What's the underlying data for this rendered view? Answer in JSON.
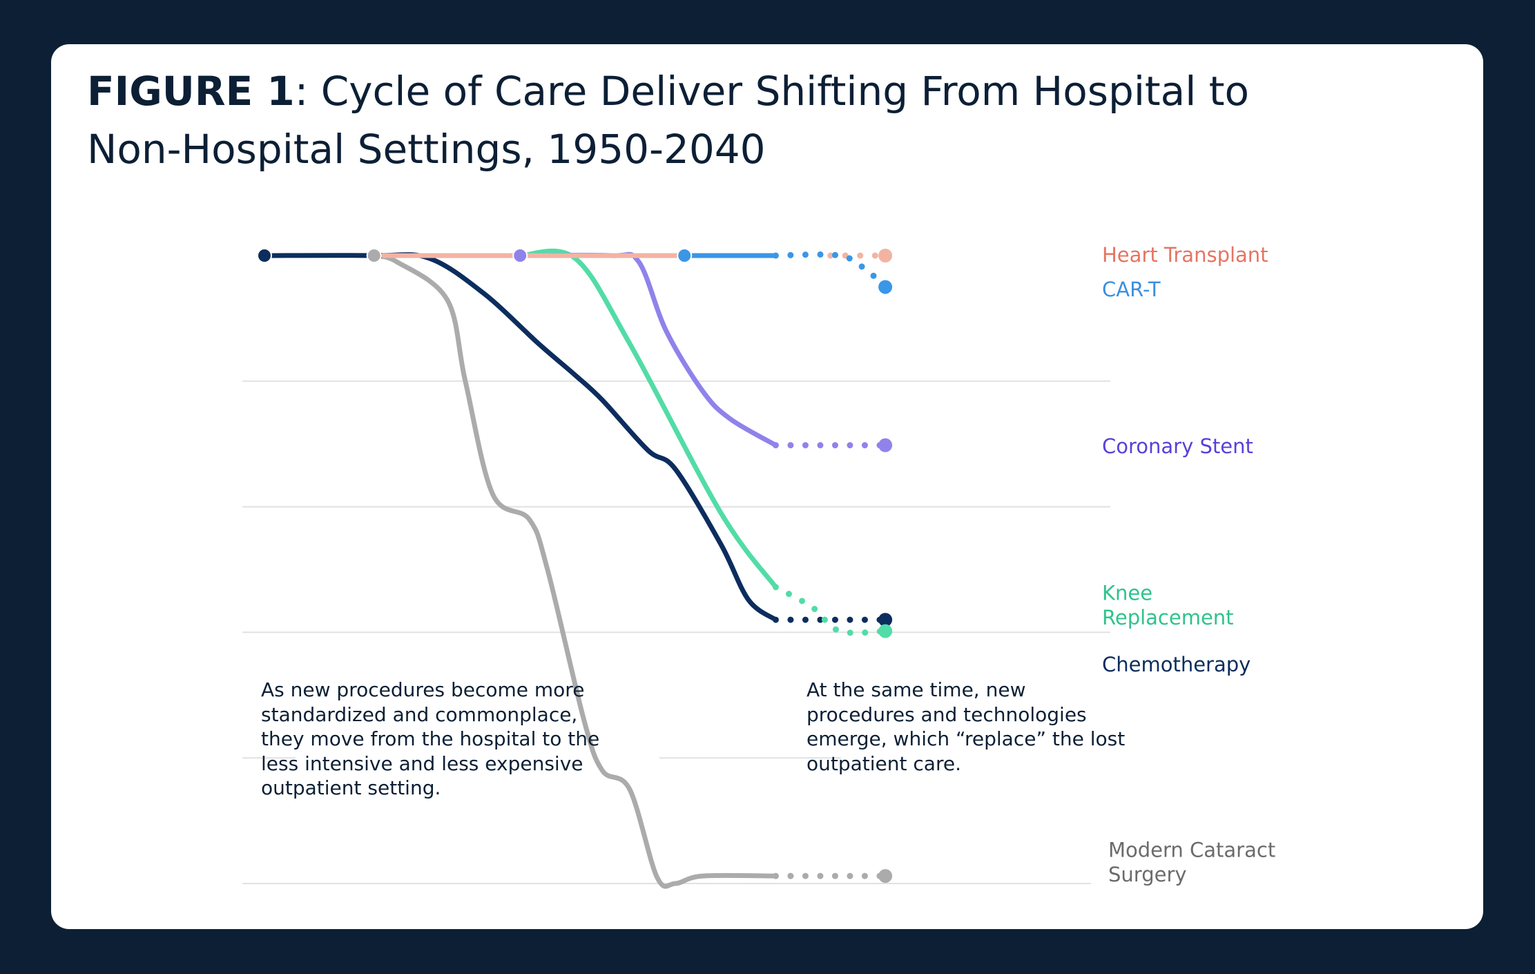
{
  "title": {
    "prefix": "FIGURE 1",
    "text": ": Cycle of Care Deliver Shifting From Hospital to Non-Hospital Settings, 1950-2040"
  },
  "annotations": {
    "left": "As new procedures become more standardized and commonplace, they move from the hospital to the less intensive and less expensive outpatient setting.",
    "right": "At the same time, new procedures and technologies emerge, which “replace” the lost outpatient care."
  },
  "chart_data": {
    "type": "line",
    "x_range": [
      1950,
      2040
    ],
    "y_range": [
      0,
      5
    ],
    "y_direction": "hospital share falls downward",
    "gridlines": [
      1,
      2,
      3,
      4,
      5
    ],
    "grid": true,
    "axis_labels": "none",
    "series": [
      {
        "name": "Modern Cataract Surgery",
        "label_lines": [
          "Modern Cataract",
          "Surgery"
        ],
        "color": "#ababab",
        "label_color": "#6b6b6b",
        "solid": [
          [
            1962,
            0
          ],
          [
            1964.5,
            0.05
          ],
          [
            1970,
            0.35
          ],
          [
            1972,
            1
          ],
          [
            1975,
            1.9
          ],
          [
            1979,
            2.1
          ],
          [
            1981,
            2.5
          ],
          [
            1985,
            3.7
          ],
          [
            1987,
            4.1
          ],
          [
            1990,
            4.25
          ],
          [
            1993,
            4.95
          ],
          [
            1995,
            5.0
          ],
          [
            1998,
            4.94
          ],
          [
            2006,
            4.94
          ]
        ],
        "dotted": [
          [
            2006,
            4.94
          ],
          [
            2018,
            4.94
          ]
        ],
        "start_marker": 1962,
        "end_marker": 2018
      },
      {
        "name": "Chemotherapy",
        "label_lines": [
          "Chemotherapy"
        ],
        "color": "#0c2d5e",
        "label_color": "#0c2d5e",
        "solid": [
          [
            1950,
            0
          ],
          [
            1962,
            0
          ],
          [
            1968,
            0.02
          ],
          [
            1974,
            0.3
          ],
          [
            1980,
            0.7
          ],
          [
            1984,
            0.95
          ],
          [
            1987,
            1.15
          ],
          [
            1992,
            1.55
          ],
          [
            1995,
            1.7
          ],
          [
            2000,
            2.3
          ],
          [
            2003,
            2.74
          ],
          [
            2006,
            2.9
          ]
        ],
        "dotted": [
          [
            2006,
            2.9
          ],
          [
            2018,
            2.9
          ]
        ],
        "start_marker": 1950,
        "end_marker": 2018
      },
      {
        "name": "Knee Replacement",
        "label_lines": [
          "Knee",
          "Replacement"
        ],
        "color": "#52dca7",
        "label_color": "#2ec38d",
        "solid": [
          [
            1978,
            0
          ],
          [
            1984,
            0.02
          ],
          [
            1990,
            0.7
          ],
          [
            2000,
            2.05
          ],
          [
            2006,
            2.64
          ]
        ],
        "dotted": [
          [
            2006,
            2.64
          ],
          [
            2010,
            2.8
          ],
          [
            2013,
            2.99
          ],
          [
            2018,
            2.99
          ]
        ],
        "start_marker": null,
        "end_marker": 2018
      },
      {
        "name": "Coronary Stent",
        "label_lines": [
          "Coronary Stent"
        ],
        "color": "#8f82eb",
        "label_color": "#5b3fd9",
        "solid": [
          [
            1978,
            0
          ],
          [
            1988,
            0
          ],
          [
            1991,
            0.05
          ],
          [
            1994,
            0.6
          ],
          [
            1998,
            1.08
          ],
          [
            2001,
            1.3
          ],
          [
            2006,
            1.51
          ]
        ],
        "dotted": [
          [
            2006,
            1.51
          ],
          [
            2018,
            1.51
          ]
        ],
        "start_marker": 1978,
        "end_marker": 2018
      },
      {
        "name": "Heart Transplant",
        "label_lines": [
          "Heart Transplant"
        ],
        "color": "#f3b3a3",
        "label_color": "#e57562",
        "solid": [
          [
            1963,
            0
          ],
          [
            1997,
            0
          ]
        ],
        "dotted": [
          [
            2012,
            0
          ],
          [
            2018,
            0
          ]
        ],
        "start_marker": null,
        "end_marker": 2018
      },
      {
        "name": "CAR-T",
        "label_lines": [
          "CAR-T"
        ],
        "color": "#3a96e6",
        "label_color": "#3a8fe0",
        "solid": [
          [
            1996,
            0
          ],
          [
            2006,
            0
          ]
        ],
        "dotted": [
          [
            2006,
            0
          ],
          [
            2013,
            0
          ],
          [
            2016,
            0.12
          ],
          [
            2018,
            0.25
          ]
        ],
        "start_marker": 1996,
        "end_marker": 2018
      }
    ]
  }
}
